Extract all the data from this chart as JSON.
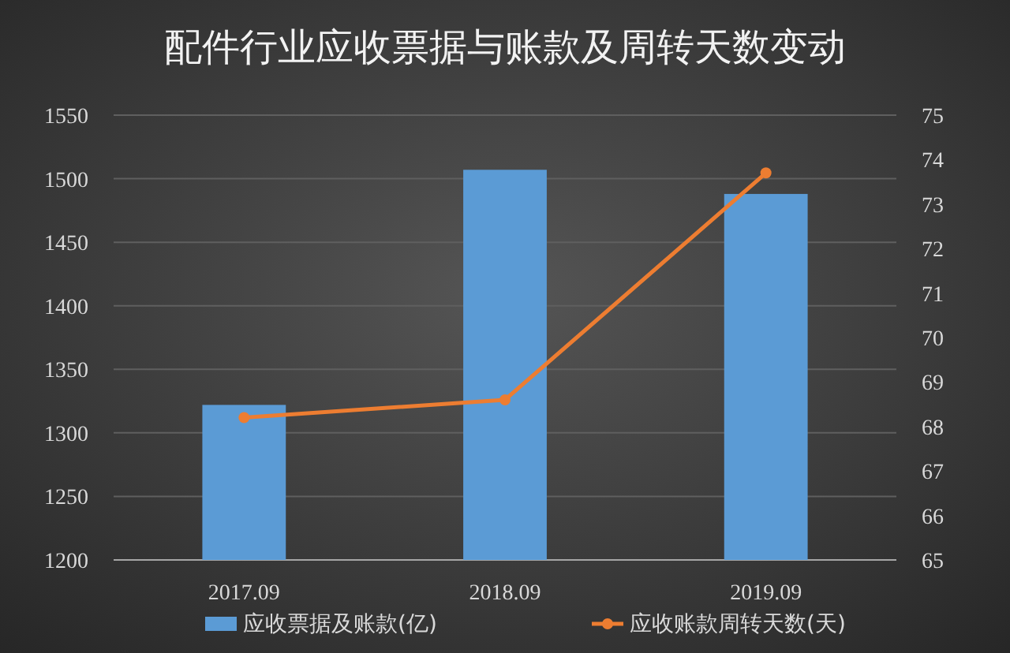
{
  "chart_data": {
    "type": "bar",
    "title": "配件行业应收票据与账款及周转天数变动",
    "categories": [
      "2017.09",
      "2018.09",
      "2019.09"
    ],
    "series": [
      {
        "name": "应收票据及账款(亿)",
        "color": "#5b9bd5",
        "values": [
          1322,
          1507,
          1488
        ]
      },
      {
        "name": "应收账款周转天数(天)",
        "type": "line",
        "axis": "y2",
        "color": "#ed7d31",
        "marker": "circle",
        "values": [
          68.2,
          68.6,
          73.7
        ]
      }
    ],
    "ylim": [
      1200,
      1550
    ],
    "yticks": [
      1200,
      1250,
      1300,
      1350,
      1400,
      1450,
      1500,
      1550
    ],
    "y2lim": [
      65,
      75
    ],
    "y2ticks": [
      65,
      66,
      67,
      68,
      69,
      70,
      71,
      72,
      73,
      74,
      75
    ],
    "grid": "y",
    "legend": "bottom"
  }
}
